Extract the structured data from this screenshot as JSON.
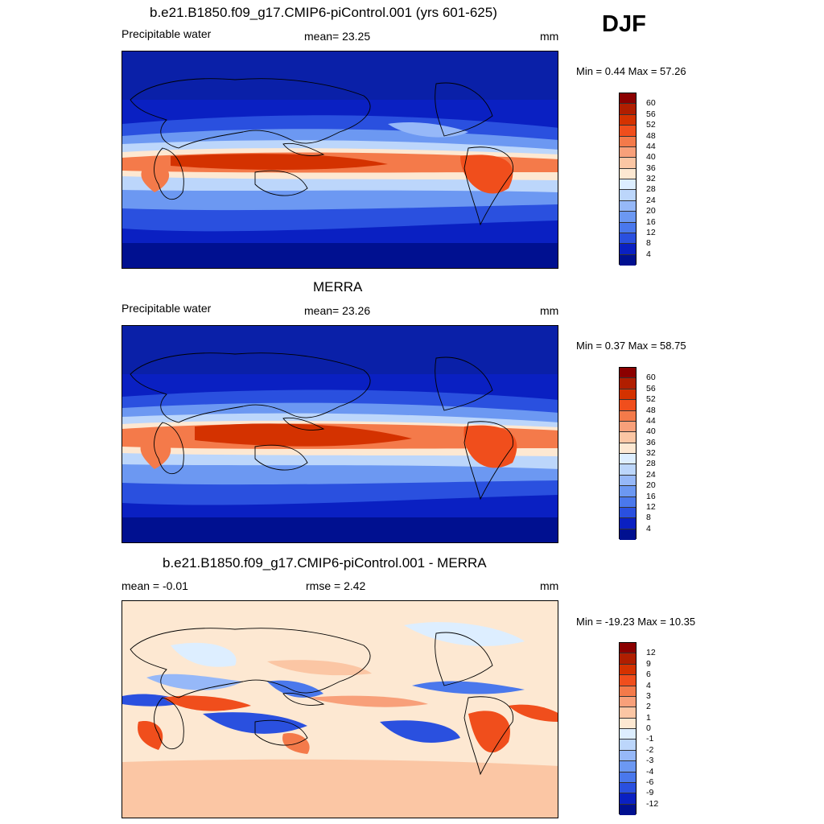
{
  "season": "DJF",
  "panels": [
    {
      "id": "model",
      "title": "b.e21.B1850.f09_g17.CMIP6-piControl.001 (yrs 601-625)",
      "left_label": "Precipitable water",
      "center_label": "mean=  23.25",
      "units": "mm",
      "range_label": "Min =   0.44 Max =  57.26"
    },
    {
      "id": "obs",
      "title": "MERRA",
      "left_label": "Precipitable water",
      "center_label": "mean=  23.26",
      "units": "mm",
      "range_label": "Min =   0.37 Max =  58.75"
    },
    {
      "id": "diff",
      "title": "b.e21.B1850.f09_g17.CMIP6-piControl.001 - MERRA",
      "left_label": "mean =  -0.01",
      "center_label": "rmse =   2.42",
      "units": "mm",
      "range_label": "Min = -19.23 Max =  10.35"
    }
  ],
  "colorbars": {
    "abs": {
      "labels": [
        "60",
        "56",
        "52",
        "48",
        "44",
        "40",
        "36",
        "32",
        "28",
        "24",
        "20",
        "16",
        "12",
        "8",
        "4"
      ],
      "colors": [
        "#8b0000",
        "#b01e00",
        "#d43200",
        "#f04e1c",
        "#f47a4a",
        "#f8a07a",
        "#fbc6a4",
        "#fde8d2",
        "#ddeeff",
        "#bcd6fb",
        "#96b8f8",
        "#6c98f2",
        "#4a78ec",
        "#2a50df",
        "#0a20c2",
        "#001090"
      ]
    },
    "diff": {
      "labels": [
        "12",
        "9",
        "6",
        "4",
        "3",
        "2",
        "1",
        "0",
        "-1",
        "-2",
        "-3",
        "-4",
        "-6",
        "-9",
        "-12"
      ],
      "colors": [
        "#8b0000",
        "#b01e00",
        "#d43200",
        "#f04e1c",
        "#f47a4a",
        "#f8a07a",
        "#fbc6a4",
        "#fde8d2",
        "#ddeeff",
        "#bcd6fb",
        "#96b8f8",
        "#6c98f2",
        "#4a78ec",
        "#2a50df",
        "#0a20c2",
        "#001090"
      ]
    }
  }
}
